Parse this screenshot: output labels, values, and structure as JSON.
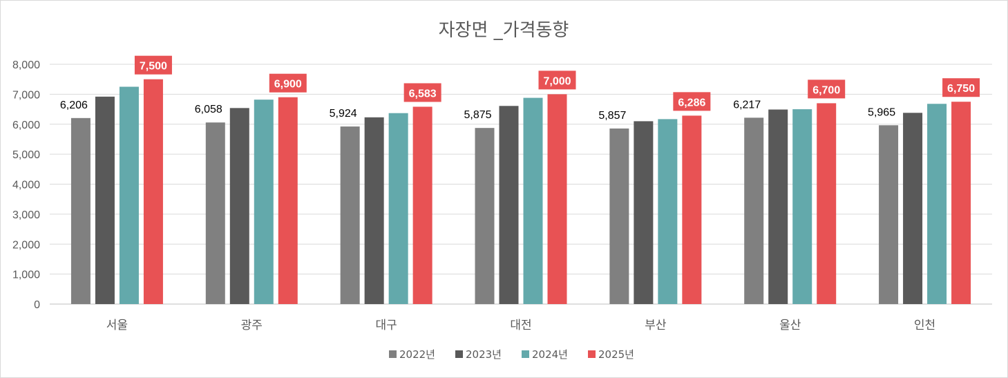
{
  "chart_data": {
    "type": "bar",
    "title": "자장면 _가격동향",
    "categories": [
      "서울",
      "광주",
      "대구",
      "대전",
      "부산",
      "울산",
      "인천"
    ],
    "series": [
      {
        "name": "2022년",
        "color": "#808080",
        "values": [
          6206,
          6058,
          5924,
          5875,
          5857,
          6217,
          5965
        ],
        "labeled": true,
        "highlight": false
      },
      {
        "name": "2023년",
        "color": "#595959",
        "values": [
          6920,
          6540,
          6230,
          6610,
          6100,
          6490,
          6380
        ],
        "labeled": false,
        "highlight": false
      },
      {
        "name": "2024년",
        "color": "#63a9ab",
        "values": [
          7250,
          6820,
          6370,
          6880,
          6170,
          6500,
          6680
        ],
        "labeled": false,
        "highlight": false
      },
      {
        "name": "2025년",
        "color": "#e85254",
        "values": [
          7500,
          6900,
          6583,
          7000,
          6286,
          6700,
          6750
        ],
        "labeled": true,
        "highlight": true
      }
    ],
    "ylim": [
      0,
      8000
    ],
    "yticks": [
      0,
      1000,
      2000,
      3000,
      4000,
      5000,
      6000,
      7000,
      8000
    ],
    "grid": true,
    "legend": "bottom"
  }
}
